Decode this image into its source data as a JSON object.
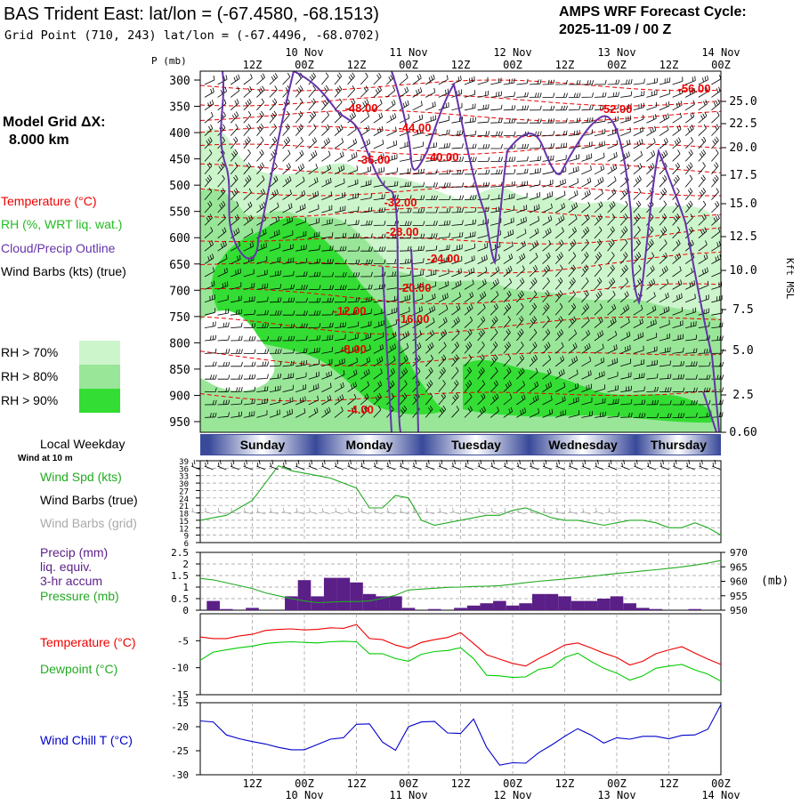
{
  "header": {
    "title": "BAS Trident East:  lat/lon = (-67.4580, -68.1513)",
    "grid_point": "Grid Point (710, 243) lat/lon = (-67.4496, -68.0702)",
    "cycle_label": "AMPS WRF Forecast Cycle:",
    "cycle_value": "2025-11-09 / 00  Z",
    "model_grid_label": "Model Grid ΔX:",
    "model_grid_value": "8.000 km"
  },
  "colors": {
    "temperature": "#ee0000",
    "rh": "#00bb00",
    "cloud": "#6633aa",
    "precip": "#5b1f88",
    "windchill": "#0000cc",
    "day_bar": "#4a5aa8",
    "rh70": "#ccf5cc",
    "rh80": "#99e699",
    "rh90": "#33dd33"
  },
  "time_axis": {
    "top_hours": [
      "12Z",
      "00Z",
      "12Z",
      "00Z",
      "12Z",
      "00Z",
      "12Z",
      "00Z",
      "12Z",
      "00Z"
    ],
    "dates": [
      "10 Nov",
      "11 Nov",
      "12 Nov",
      "13 Nov",
      "14 Nov"
    ],
    "bottom_hours": [
      "12Z",
      "00Z",
      "12Z",
      "00Z",
      "12Z",
      "00Z",
      "12Z",
      "00Z",
      "12Z",
      "00Z"
    ]
  },
  "cross_section": {
    "pressure_title": "P (mb)",
    "pressure_ticks": [
      300,
      350,
      400,
      450,
      500,
      550,
      600,
      650,
      700,
      750,
      800,
      850,
      900,
      950
    ],
    "height_ticks": [
      "25.0",
      "22.5",
      "20.0",
      "17.5",
      "15.0",
      "12.5",
      "10.0",
      "7.5",
      "5.0",
      "2.5",
      "0.60"
    ],
    "height_axis_label": "Kft MSL",
    "legend": {
      "temperature": "Temperature (°C)",
      "rh": "RH (%, WRT liq. wat.)",
      "cloud": "Cloud/Precip Outline",
      "wind": "Wind Barbs (kts) (true)",
      "rh70": "RH > 70%",
      "rh80": "RH > 80%",
      "rh90": "RH > 90%"
    },
    "temp_labels": [
      "-56.00",
      "-52.00",
      "-48.00",
      "-44.00",
      "-40.00",
      "-36.00",
      "-32.00",
      "-28.00",
      "-24.00",
      "-20.00",
      "-16.00",
      "-12.00",
      "-8.00",
      "-4.00"
    ]
  },
  "weekday": {
    "label": "Local Weekday",
    "sublabel": "Wind at 10 m",
    "days": [
      "Sunday",
      "Monday",
      "Tuesday",
      "Wednesday",
      "Thursday"
    ]
  },
  "chart_data": [
    {
      "type": "line",
      "title": "Wind Spd (kts)",
      "legend": [
        "Wind Spd (kts)",
        "Wind Barbs (true)",
        "Wind Barbs (grid)"
      ],
      "ylim": [
        6,
        39
      ],
      "yticks": [
        6,
        9,
        12,
        15,
        18,
        21,
        24,
        27,
        30,
        33,
        36,
        39
      ],
      "x_hours": [
        0,
        3,
        6,
        9,
        12,
        15,
        18,
        21,
        24,
        27,
        30,
        33,
        36,
        39,
        42,
        45,
        48,
        51,
        54,
        57,
        60,
        63,
        66,
        69,
        72,
        75,
        78,
        81,
        84,
        87,
        90,
        93,
        96,
        99,
        102,
        105,
        108,
        111,
        114,
        117,
        120
      ],
      "series": [
        {
          "name": "Wind Spd (kts)",
          "values": [
            15,
            16,
            17,
            20,
            23,
            30,
            37,
            35,
            34,
            33,
            32,
            30,
            28,
            20,
            20,
            25,
            24,
            15,
            13,
            14,
            15,
            16,
            17,
            17,
            19,
            20,
            18,
            16,
            15,
            15,
            14,
            13,
            14,
            15,
            15,
            14,
            12,
            12,
            14,
            12,
            9
          ]
        }
      ]
    },
    {
      "type": "bar",
      "title": "Precip (mm) liq. equiv. 3-hr accum / Pressure (mb)",
      "legend": [
        "Precip (mm)",
        "liq. equiv.",
        "3-hr accum",
        "Pressure (mb)"
      ],
      "ylim": [
        0,
        2.5
      ],
      "yticks": [
        0,
        0.5,
        1,
        1.5,
        2,
        2.5
      ],
      "y2lim": [
        950,
        970
      ],
      "y2ticks": [
        950,
        955,
        960,
        965,
        970
      ],
      "y2label": "(mb)",
      "x_hours": [
        0,
        3,
        6,
        9,
        12,
        15,
        18,
        21,
        24,
        27,
        30,
        33,
        36,
        39,
        42,
        45,
        48,
        51,
        54,
        57,
        60,
        63,
        66,
        69,
        72,
        75,
        78,
        81,
        84,
        87,
        90,
        93,
        96,
        99,
        102,
        105,
        108,
        111,
        114,
        117,
        120
      ],
      "series": [
        {
          "name": "Precip (mm)",
          "values": [
            0.0,
            0.4,
            0.05,
            0.0,
            0.1,
            0.0,
            0.0,
            0.6,
            1.3,
            0.6,
            1.4,
            1.4,
            1.2,
            0.7,
            0.6,
            0.6,
            0.1,
            0.0,
            0.05,
            0.0,
            0.1,
            0.2,
            0.3,
            0.4,
            0.2,
            0.3,
            0.7,
            0.7,
            0.6,
            0.4,
            0.4,
            0.5,
            0.6,
            0.3,
            0.1,
            0.05,
            0.0,
            0.0,
            0.05,
            0.0,
            0.0
          ]
        },
        {
          "name": "Pressure (mb)",
          "values": [
            961,
            960.5,
            959.5,
            958.5,
            957.5,
            956,
            955,
            954,
            953.2,
            952.6,
            952.8,
            953,
            953,
            953.2,
            954.1,
            955.2,
            957,
            957.3,
            957.6,
            957.9,
            958,
            958.2,
            958.3,
            958.5,
            959,
            959.5,
            960,
            960.4,
            960.8,
            961.2,
            961.7,
            962.2,
            962.7,
            963.1,
            963.6,
            964,
            964.5,
            965,
            965.6,
            966.3,
            967.2
          ]
        }
      ]
    },
    {
      "type": "line",
      "title": "Temperature / Dewpoint (°C)",
      "legend": [
        "Temperature (°C)",
        "Dewpoint (°C)"
      ],
      "ylim": [
        -15,
        0
      ],
      "yticks": [
        -15,
        -10,
        -5
      ],
      "x_hours": [
        0,
        3,
        6,
        9,
        12,
        15,
        18,
        21,
        24,
        27,
        30,
        33,
        36,
        39,
        42,
        45,
        48,
        51,
        54,
        57,
        60,
        63,
        66,
        69,
        72,
        75,
        78,
        81,
        84,
        87,
        90,
        93,
        96,
        99,
        102,
        105,
        108,
        111,
        114,
        117,
        120
      ],
      "series": [
        {
          "name": "Temperature (°C)",
          "values": [
            -4.3,
            -4.6,
            -4.6,
            -4.1,
            -3.8,
            -3.1,
            -2.9,
            -2.8,
            -3.0,
            -2.9,
            -2.6,
            -2.7,
            -2.0,
            -4.6,
            -4.8,
            -5.8,
            -6.4,
            -5.3,
            -4.8,
            -4.4,
            -3.5,
            -5.5,
            -7.6,
            -8.4,
            -9.2,
            -9.7,
            -8.3,
            -7.1,
            -5.8,
            -5.4,
            -6.3,
            -7.3,
            -8.1,
            -9.5,
            -8.8,
            -7.4,
            -6.7,
            -6.1,
            -7.3,
            -8.4,
            -9.4
          ]
        },
        {
          "name": "Dewpoint (°C)",
          "values": [
            -8.6,
            -7.1,
            -6.7,
            -6.3,
            -6.0,
            -5.5,
            -5.3,
            -5.2,
            -5.3,
            -5.4,
            -5.2,
            -5.1,
            -5.2,
            -7.4,
            -7.4,
            -8.3,
            -8.8,
            -7.5,
            -7.0,
            -6.8,
            -6.3,
            -8.3,
            -11.4,
            -11.5,
            -11.8,
            -11.7,
            -10.3,
            -9.9,
            -8.1,
            -7.3,
            -8.8,
            -10.1,
            -11.0,
            -12.3,
            -11.5,
            -10.1,
            -9.7,
            -9.4,
            -10.4,
            -11.2,
            -12.5
          ]
        }
      ]
    },
    {
      "type": "line",
      "title": "Wind Chill T (°C)",
      "legend": [
        "Wind Chill T (°C)"
      ],
      "ylim": [
        -30,
        -15
      ],
      "yticks": [
        -30,
        -25,
        -20,
        -15
      ],
      "x_hours": [
        0,
        3,
        6,
        9,
        12,
        15,
        18,
        21,
        24,
        27,
        30,
        33,
        36,
        39,
        42,
        45,
        48,
        51,
        54,
        57,
        60,
        63,
        66,
        69,
        72,
        75,
        78,
        81,
        84,
        87,
        90,
        93,
        96,
        99,
        102,
        105,
        108,
        111,
        114,
        117,
        120
      ],
      "series": [
        {
          "name": "Wind Chill T (°C)",
          "values": [
            -18.8,
            -19.0,
            -21.7,
            -22.5,
            -23.1,
            -23.6,
            -24.3,
            -24.8,
            -24.8,
            -23.7,
            -22.6,
            -22.3,
            -19.5,
            -19.4,
            -23.2,
            -24.9,
            -20.0,
            -19.0,
            -18.9,
            -21.3,
            -21.4,
            -18.4,
            -24.3,
            -28.0,
            -27.5,
            -27.6,
            -25.4,
            -23.8,
            -22.0,
            -20.4,
            -21.7,
            -23.4,
            -22.3,
            -22.6,
            -22.0,
            -22.0,
            -22.5,
            -21.8,
            -21.7,
            -20.5,
            -15.4
          ]
        }
      ]
    }
  ]
}
